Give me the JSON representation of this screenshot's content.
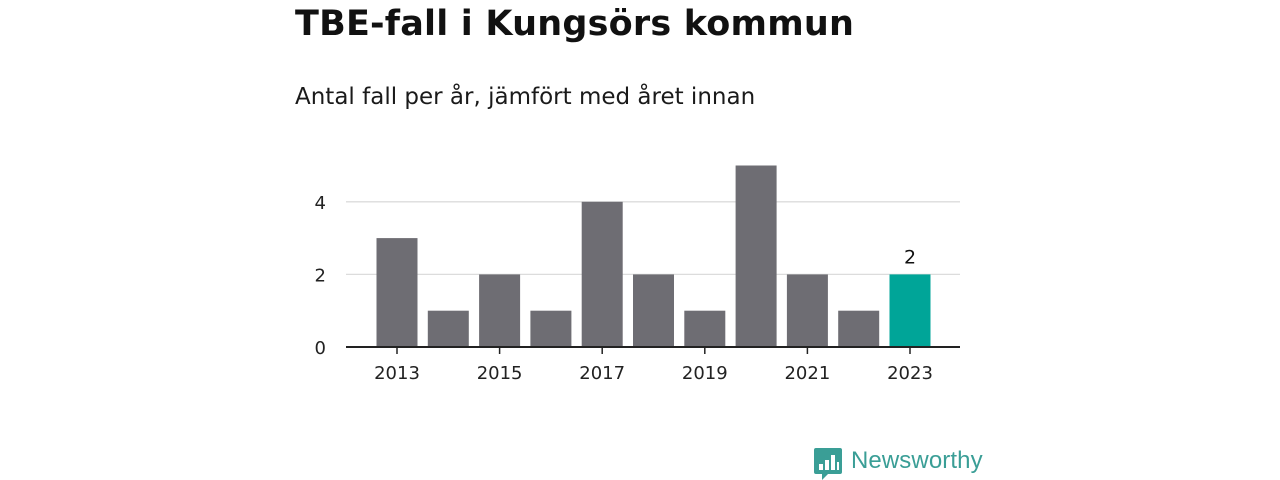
{
  "title": "TBE-fall i Kungsörs kommun",
  "subtitle": "Antal fall per år, jämfört med året innan",
  "brand": {
    "name": "Newsworthy",
    "logo_icon": "newsworthy-bar-chart-bubble-icon"
  },
  "colors": {
    "bar": "#6e6d73",
    "highlight": "#00a598",
    "grid": "#dcdcdc",
    "axis": "#222222",
    "brand": "#3a9e96"
  },
  "chart_data": {
    "type": "bar",
    "categories": [
      "2013",
      "2014",
      "2015",
      "2016",
      "2017",
      "2018",
      "2019",
      "2020",
      "2021",
      "2022",
      "2023"
    ],
    "values": [
      3,
      1,
      2,
      1,
      4,
      2,
      1,
      5,
      2,
      1,
      2
    ],
    "x_tick_labels": [
      "2013",
      "2015",
      "2017",
      "2019",
      "2021",
      "2023"
    ],
    "y_ticks": [
      0,
      2,
      4
    ],
    "ylim": [
      0,
      5
    ],
    "highlight_category": "2023",
    "data_labels": [
      {
        "category": "2023",
        "text": "2"
      }
    ],
    "grid": true,
    "legend": "none"
  }
}
